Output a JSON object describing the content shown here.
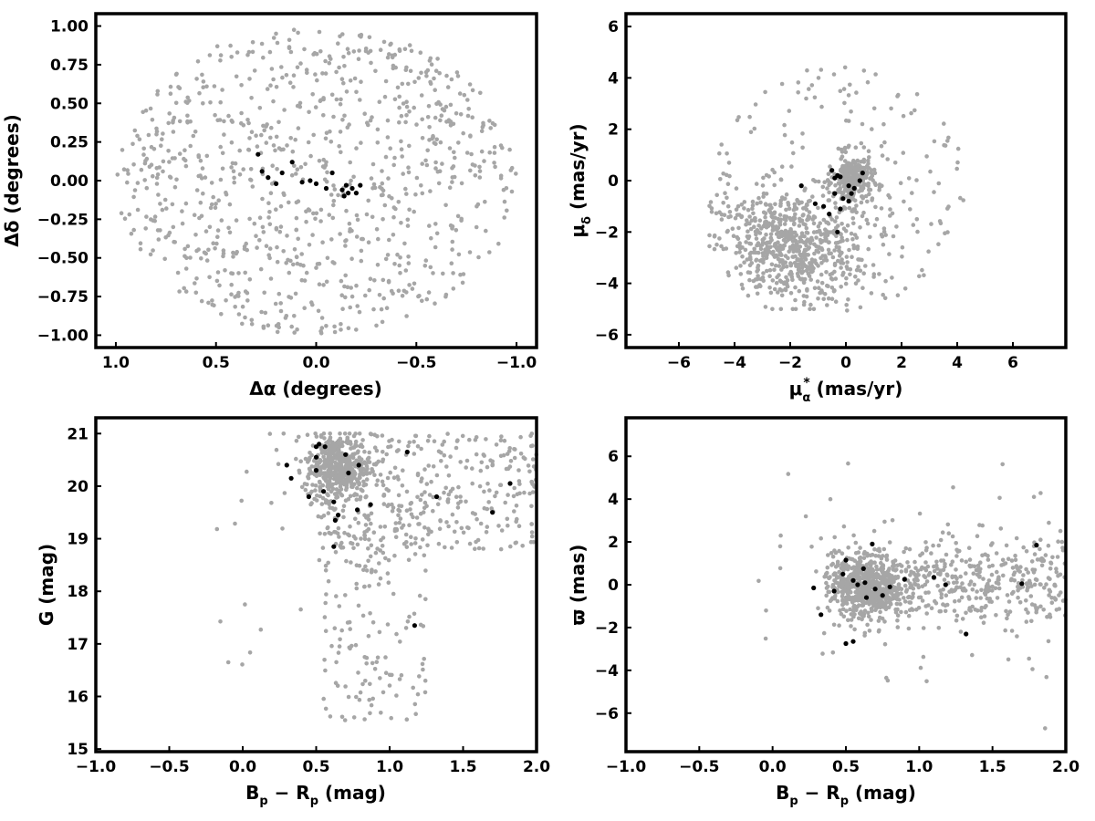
{
  "colors": {
    "field": "#a6a6a6",
    "members": "#000000"
  },
  "chart_data": [
    {
      "type": "scatter",
      "xlabel_html": "Δα (degrees)",
      "ylabel_html": "Δδ (degrees)",
      "xlim": [
        1.1,
        -1.1
      ],
      "ylim": [
        -1.08,
        1.08
      ],
      "xticks": [
        1.0,
        0.5,
        0.0,
        -0.5,
        -1.0
      ],
      "xtick_labels": [
        "1.0",
        "0.5",
        "0.0",
        "−0.5",
        "−1.0"
      ],
      "yticks": [
        -1.0,
        -0.75,
        -0.5,
        -0.25,
        0.0,
        0.25,
        0.5,
        0.75,
        1.0
      ],
      "ytick_labels": [
        "−1.00",
        "−0.75",
        "−0.50",
        "−0.25",
        "0.00",
        "0.25",
        "0.50",
        "0.75",
        "1.00"
      ],
      "field_distribution": "uniform disk, radius 1.0 deg, ~900 grey points",
      "members": [
        [
          0.29,
          0.17
        ],
        [
          0.27,
          0.06
        ],
        [
          0.24,
          0.02
        ],
        [
          0.2,
          -0.02
        ],
        [
          0.17,
          0.05
        ],
        [
          0.12,
          0.12
        ],
        [
          0.07,
          -0.01
        ],
        [
          0.03,
          0.0
        ],
        [
          0.0,
          -0.02
        ],
        [
          -0.05,
          -0.05
        ],
        [
          -0.08,
          0.05
        ],
        [
          -0.13,
          -0.06
        ],
        [
          -0.15,
          -0.03
        ],
        [
          -0.16,
          -0.08
        ],
        [
          -0.18,
          -0.05
        ],
        [
          -0.2,
          -0.08
        ],
        [
          -0.14,
          -0.1
        ],
        [
          -0.22,
          -0.03
        ]
      ]
    },
    {
      "type": "scatter",
      "xlabel_main": "μ",
      "xlabel_sub": "α",
      "xlabel_sup": "*",
      "xlabel_units": " (mas/yr)",
      "ylabel_main": "μ",
      "ylabel_sub": "δ",
      "ylabel_units": " (mas/yr)",
      "xlim": [
        -7.9,
        7.9
      ],
      "ylim": [
        -6.5,
        6.5
      ],
      "xticks": [
        -6,
        -4,
        -2,
        0,
        2,
        4,
        6
      ],
      "xtick_labels": [
        "−6",
        "−4",
        "−2",
        "0",
        "2",
        "4",
        "6"
      ],
      "yticks": [
        -6,
        -4,
        -2,
        0,
        2,
        4,
        6
      ],
      "ytick_labels": [
        "−6",
        "−4",
        "−2",
        "0",
        "2",
        "4",
        "6"
      ],
      "field_distribution": "broad cloud centered near (-2, -2.5) plus dense clump near (0.2, 0)",
      "members": [
        [
          -0.5,
          0.4
        ],
        [
          -0.3,
          0.2
        ],
        [
          -0.4,
          0.1
        ],
        [
          -0.2,
          0.15
        ],
        [
          0.1,
          -0.2
        ],
        [
          0.3,
          -0.3
        ],
        [
          0.6,
          0.3
        ],
        [
          0.5,
          0.0
        ],
        [
          -0.1,
          -0.7
        ],
        [
          0.1,
          -0.8
        ],
        [
          -1.6,
          -0.2
        ],
        [
          -1.1,
          -0.9
        ],
        [
          -0.6,
          -1.3
        ],
        [
          -0.2,
          -1.1
        ],
        [
          -0.3,
          -2.0
        ],
        [
          -0.4,
          -0.5
        ],
        [
          0.2,
          -0.5
        ],
        [
          -0.8,
          -1.0
        ]
      ]
    },
    {
      "type": "scatter",
      "xlabel_main": "B",
      "xlabel_sub1": "p",
      "xlabel_minus": " − R",
      "xlabel_sub2": "p",
      "xlabel_units": " (mag)",
      "ylabel_html": "G (mag)",
      "xlim": [
        -1.0,
        2.0
      ],
      "ylim": [
        14.95,
        21.3
      ],
      "xticks": [
        -1.0,
        -0.5,
        0.0,
        0.5,
        1.0,
        1.5,
        2.0
      ],
      "xtick_labels": [
        "−1.0",
        "−0.5",
        "0.0",
        "0.5",
        "1.0",
        "1.5",
        "2.0"
      ],
      "yticks": [
        15,
        16,
        17,
        18,
        19,
        20,
        21
      ],
      "ytick_labels": [
        "15",
        "16",
        "17",
        "18",
        "19",
        "20",
        "21"
      ],
      "field_distribution": "dense clump near (0.65, 20.3), faint tail to G~15.2, spread to red colours",
      "members": [
        [
          0.3,
          20.4
        ],
        [
          0.33,
          20.15
        ],
        [
          0.5,
          20.75
        ],
        [
          0.52,
          20.8
        ],
        [
          0.56,
          20.75
        ],
        [
          0.5,
          20.55
        ],
        [
          0.55,
          19.9
        ],
        [
          0.45,
          19.8
        ],
        [
          0.62,
          19.7
        ],
        [
          0.65,
          19.45
        ],
        [
          0.63,
          19.35
        ],
        [
          0.62,
          18.85
        ],
        [
          0.7,
          20.6
        ],
        [
          0.72,
          20.25
        ],
        [
          0.79,
          20.4
        ],
        [
          0.78,
          19.55
        ],
        [
          0.87,
          19.65
        ],
        [
          0.5,
          20.3
        ],
        [
          1.12,
          20.65
        ],
        [
          1.32,
          19.8
        ],
        [
          1.7,
          19.5
        ],
        [
          1.82,
          20.05
        ],
        [
          1.17,
          17.35
        ]
      ]
    },
    {
      "type": "scatter",
      "xlabel_main": "B",
      "xlabel_sub1": "p",
      "xlabel_minus": " − R",
      "xlabel_sub2": "p",
      "xlabel_units": " (mag)",
      "ylabel_html": "ϖ (mas)",
      "xlim": [
        -1.0,
        2.0
      ],
      "ylim": [
        -7.8,
        7.8
      ],
      "xticks": [
        -1.0,
        -0.5,
        0.0,
        0.5,
        1.0,
        1.5,
        2.0
      ],
      "xtick_labels": [
        "−1.0",
        "−0.5",
        "0.0",
        "0.5",
        "1.0",
        "1.5",
        "2.0"
      ],
      "yticks": [
        -6,
        -4,
        -2,
        0,
        2,
        4,
        6
      ],
      "ytick_labels": [
        "−6",
        "−4",
        "−2",
        "0",
        "2",
        "4",
        "6"
      ],
      "field_distribution": "concentrated band at parallax ~0 from colour 0.3 to 2.0, dense near 0.65",
      "members": [
        [
          0.28,
          -0.15
        ],
        [
          0.33,
          -1.4
        ],
        [
          0.42,
          -0.3
        ],
        [
          0.48,
          0.5
        ],
        [
          0.5,
          1.15
        ],
        [
          0.55,
          0.2
        ],
        [
          0.58,
          0.0
        ],
        [
          0.62,
          0.75
        ],
        [
          0.63,
          0.1
        ],
        [
          0.64,
          -0.6
        ],
        [
          0.68,
          1.9
        ],
        [
          0.7,
          -0.2
        ],
        [
          0.75,
          -0.5
        ],
        [
          0.8,
          -0.1
        ],
        [
          0.9,
          0.25
        ],
        [
          0.5,
          -2.75
        ],
        [
          0.55,
          -2.65
        ],
        [
          1.1,
          0.35
        ],
        [
          1.18,
          0.0
        ],
        [
          1.32,
          -2.3
        ],
        [
          1.7,
          0.05
        ],
        [
          1.8,
          1.85
        ]
      ]
    }
  ]
}
